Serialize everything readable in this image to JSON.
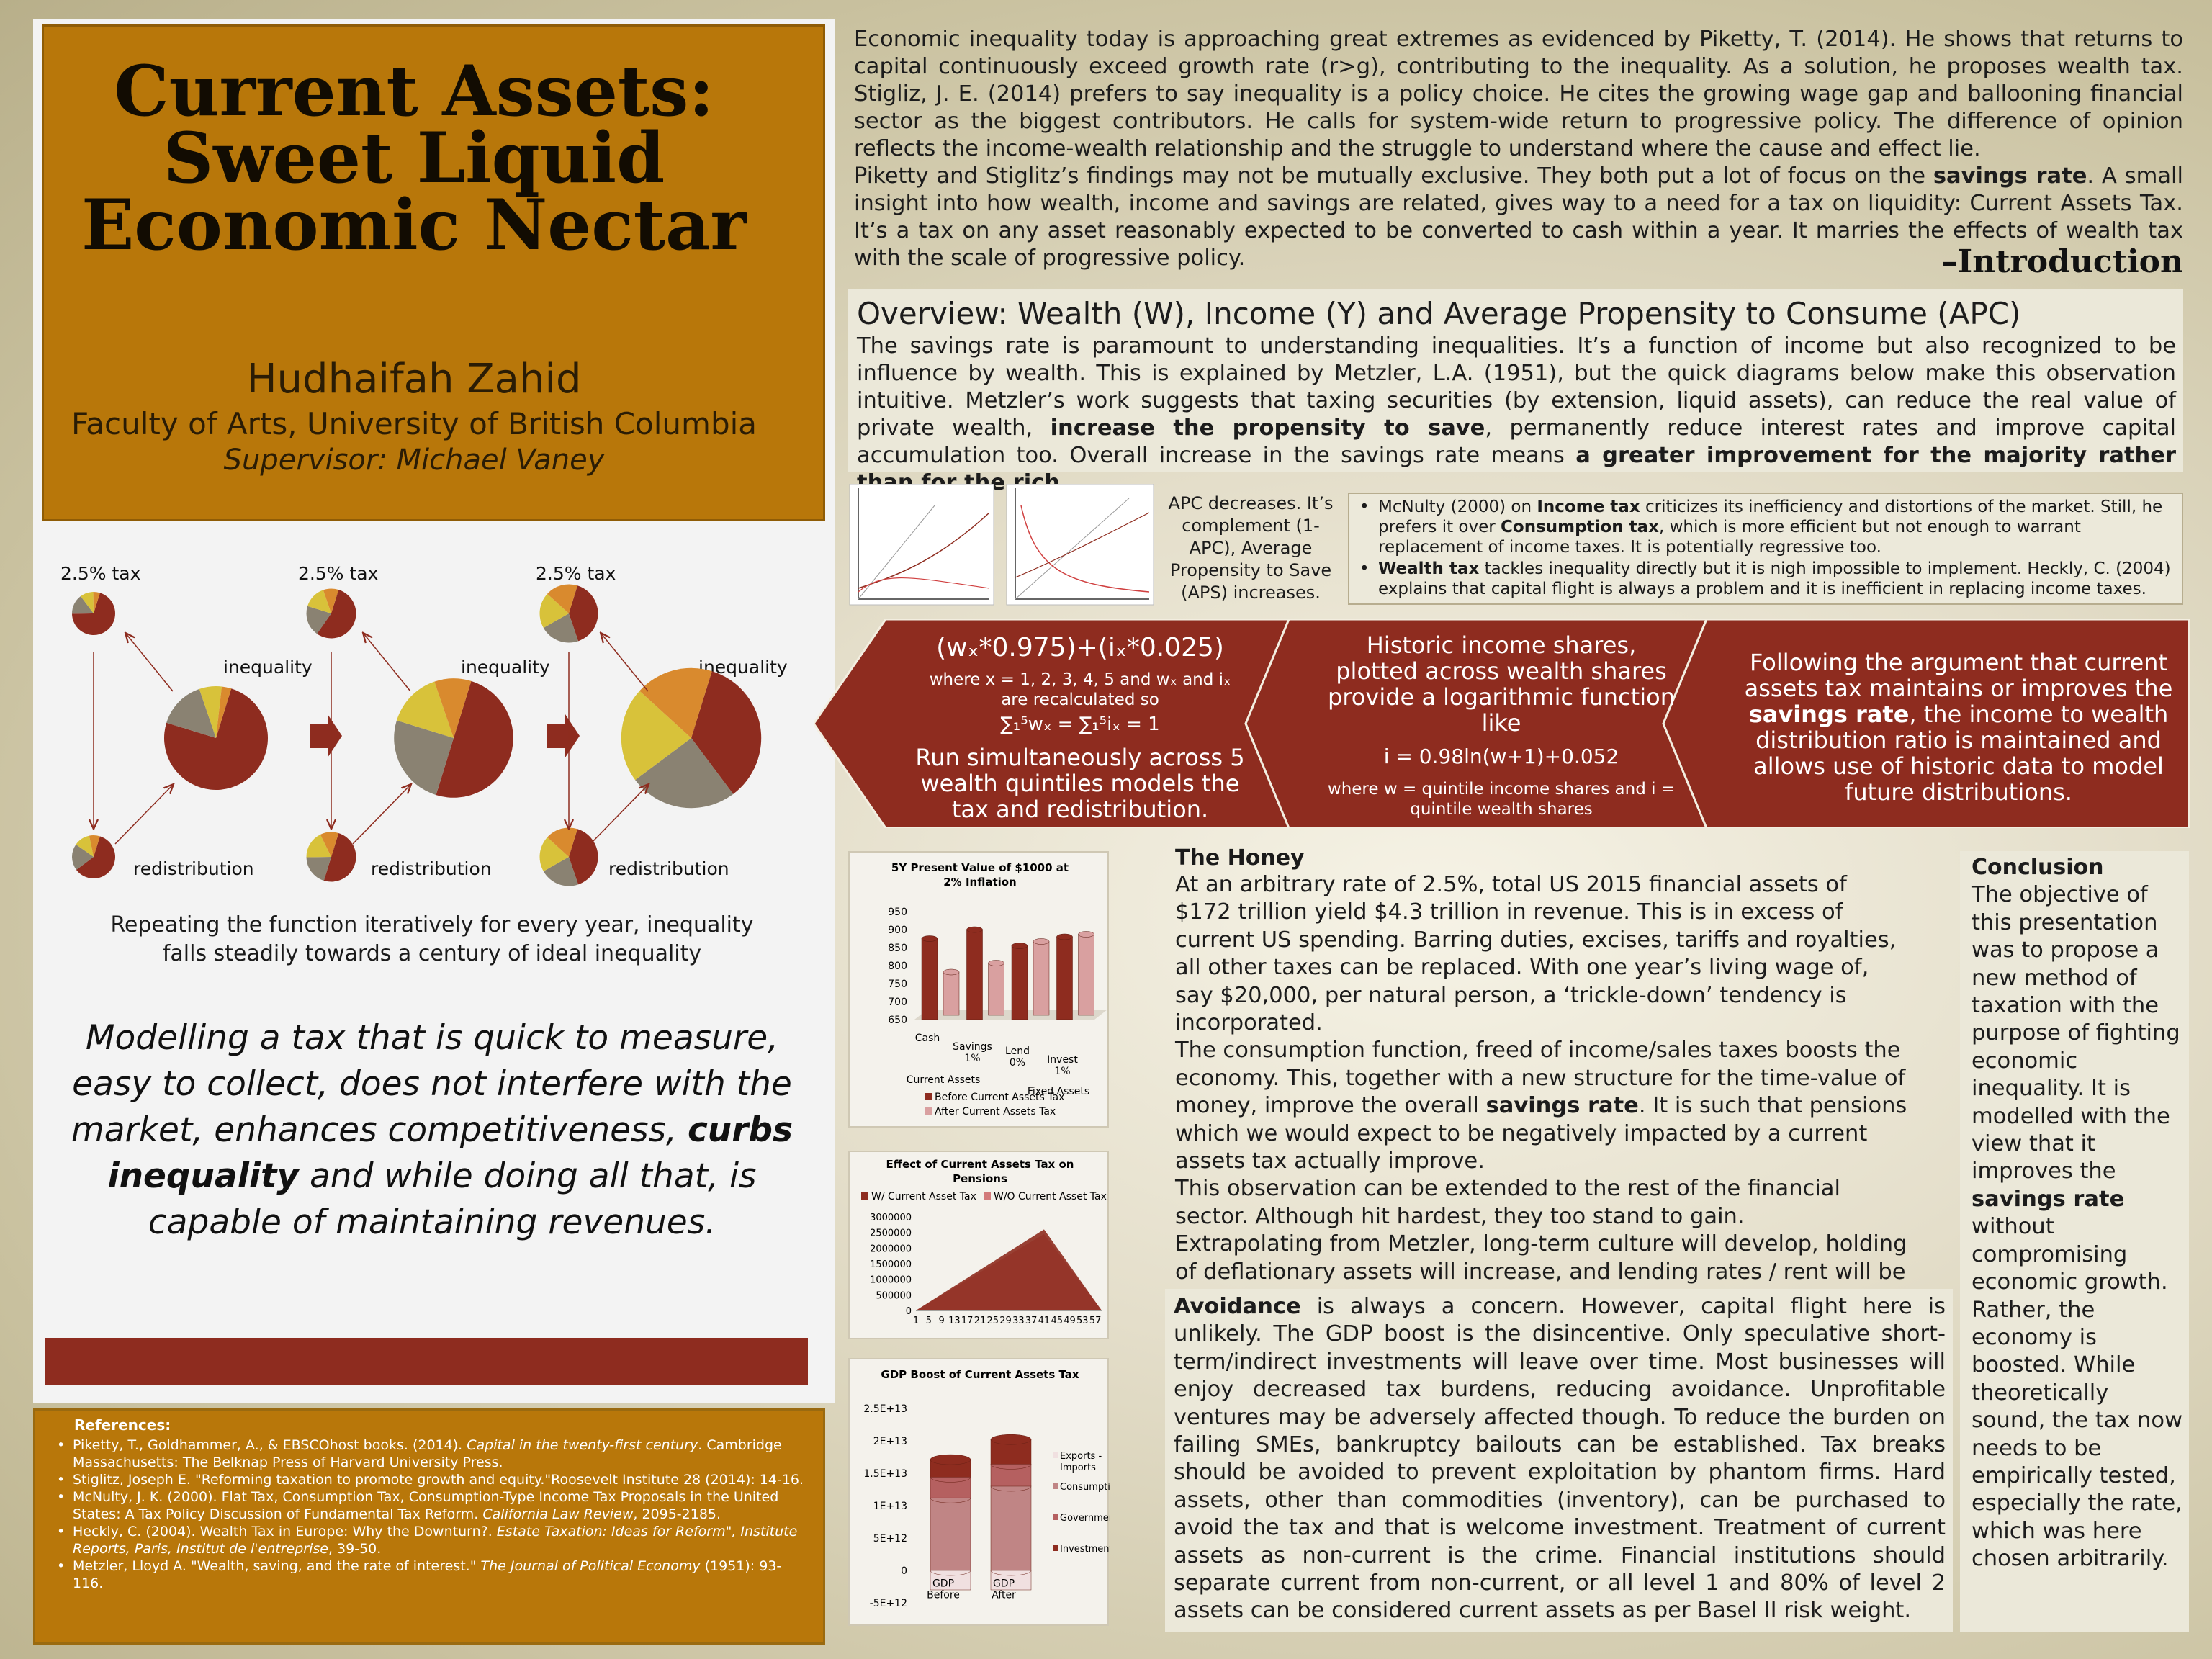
{
  "title": {
    "line1": "Current Assets:",
    "line2": "Sweet Liquid",
    "line3": "Economic Nectar",
    "author": "Hudhaifah Zahid",
    "affiliation": "Faculty of Arts, University of British Columbia",
    "supervisor": "Supervisor: Michael Vaney"
  },
  "pie_diagram": {
    "tax_label": "2.5% tax",
    "inequality_label": "inequality",
    "redistribution_label": "redistribution",
    "colors": [
      "#8e2c1f",
      "#8a8272",
      "#d8c23a",
      "#d98a2e",
      "#7a2a1c"
    ],
    "stages": [
      {
        "inequality": [
          75,
          15,
          7,
          3
        ],
        "tax": [
          70,
          15,
          10,
          5
        ],
        "redistribution": [
          60,
          20,
          12,
          8
        ]
      },
      {
        "inequality": [
          50,
          25,
          15,
          10
        ],
        "tax": [
          55,
          20,
          15,
          10
        ],
        "redistribution": [
          50,
          20,
          18,
          12
        ]
      },
      {
        "inequality": [
          35,
          25,
          22,
          18
        ],
        "tax": [
          40,
          22,
          20,
          18
        ],
        "redistribution": [
          40,
          22,
          20,
          18
        ]
      }
    ]
  },
  "iteration_caption": {
    "line1": "Repeating the function iteratively for every year, inequality",
    "line2": "falls steadily towards a century of ideal inequality"
  },
  "thesis": {
    "part1": "Modelling a tax that is quick to measure, easy to collect, does not interfere with the market, enhances competitiveness, ",
    "bold": "curbs inequality",
    "part2": " and while doing all that, is capable of maintaining revenues."
  },
  "references": {
    "heading": "References:",
    "items": [
      {
        "text": "Piketty, T., Goldhammer, A., & EBSCOhost books. (2014). ",
        "ital": "Capital in the twenty-first century",
        "rest": ". Cambridge Massachusetts: The Belknap Press of Harvard University Press."
      },
      {
        "text": "Stiglitz, Joseph E. \"Reforming taxation to promote growth and equity.\"Roosevelt Institute 28 (2014): 14-16.",
        "ital": "",
        "rest": ""
      },
      {
        "text": "McNulty, J. K. (2000). Flat Tax, Consumption Tax, Consumption-Type Income Tax Proposals in the United States: A Tax Policy Discussion of Fundamental Tax Reform. ",
        "ital": "California Law Review",
        "rest": ", 2095-2185."
      },
      {
        "text": "Heckly, C. (2004). Wealth Tax in Europe: Why the Downturn?. ",
        "ital": "Estate Taxation: Ideas for Reform\", Institute Reports, Paris, Institut de l'entreprise",
        "rest": ", 39-50."
      },
      {
        "text": "Metzler, Lloyd A. \"Wealth, saving, and the rate of interest.\" ",
        "ital": "The Journal of Political Economy",
        "rest": " (1951): 93-116."
      }
    ]
  },
  "introduction": {
    "p1": "Economic inequality today is approaching great extremes as evidenced by Piketty, T. (2014). He shows that returns to capital continuously exceed growth rate (r>g), contributing to the inequality. As a solution, he proposes wealth tax. Stigliz, J. E. (2014) prefers to say inequality is a policy choice. He cites the growing wage gap and ballooning financial sector as the biggest contributors. He calls for system-wide return to progressive policy. The difference of opinion reflects the income-wealth relationship and the struggle to understand where the cause and effect lie.",
    "p2a": "Piketty and Stiglitz’s findings may not be mutually exclusive. They both put a lot of focus on the ",
    "p2b": "savings rate",
    "p2c": ". A small insight into how wealth, income and savings are related, gives way to a need for a tax on liquidity: Current Assets Tax. It’s a tax on any asset reasonably expected to be converted to cash within a year. It marries the effects of wealth tax with the scale of progressive policy.",
    "heading": "–Introduction"
  },
  "overview": {
    "title": "Overview: Wealth (W), Income (Y) and Average Propensity to Consume (APC)",
    "t1": "The savings rate is paramount to understanding inequalities. It’s a function of income but also recognized to be influence by wealth. This is explained by Metzler, L.A. (1951), but the quick diagrams below make this observation intuitive. Metzler’s work suggests that taxing securities (by extension, liquid assets), can reduce the real value of private wealth, ",
    "b1": "increase the propensity to save",
    "t2": ", permanently reduce interest rates and improve capital accumulation too. Overall increase in the savings rate means ",
    "b2": "a greater improvement for the majority rather than for the rich."
  },
  "apc_caption": "APC decreases. It’s complement (1-APC), Average Propensity to Save (APS) increases.",
  "tax_notes": {
    "n1a": "McNulty (2000) on ",
    "n1b": "Income tax",
    "n1c": " criticizes its inefficiency and distortions of the market. Still, he prefers it over ",
    "n1d": "Consumption tax",
    "n1e": ", which is more efficient but not enough to warrant replacement of income taxes. It is potentially regressive too.",
    "n2a": "Wealth tax",
    "n2b": " tackles inequality directly but it is nigh impossible to implement. Heckly, C. (2004) explains that capital flight is always a problem and it is inefficient in replacing income taxes."
  },
  "process": {
    "formula": "(wₓ*0.975)+(iₓ*0.025)",
    "where1": "where x = 1, 2, 3, 4, 5 and wₓ and iₓ",
    "where2": "are recalculated so",
    "sum": "∑₁⁵wₓ = ∑₁⁵iₓ = 1",
    "run": "Run simultaneously across 5 wealth quintiles models the tax and redistribution.",
    "hist": "Historic income shares, plotted  across wealth shares provide a logarithmic function like",
    "hist_fn": "i = 0.98ln(w+1)+0.052",
    "hist_where": "where w = quintile income shares and i = quintile wealth shares",
    "follow_a": "Following the argument that current assets tax maintains or improves the ",
    "follow_b": "savings rate",
    "follow_c": ", the income to wealth distribution ratio is maintained and allows use of historic data to model future distributions."
  },
  "chart_data": [
    {
      "type": "bar",
      "title": "5Y Present Value of $1000 at 2% Inflation",
      "categories": [
        "Cash",
        "Savings 1%",
        "Lend 0%",
        "Invest 1%"
      ],
      "category_groups": [
        {
          "label": "Current Assets",
          "span": [
            0,
            1
          ]
        },
        {
          "label": "Fixed Assets",
          "span": [
            2,
            3
          ]
        }
      ],
      "series": [
        {
          "name": "Before Current Assets Tax",
          "values": [
            875,
            900,
            855,
            880
          ],
          "color": "#8e2c1f"
        },
        {
          "name": "After Current Assets Tax",
          "values": [
            770,
            795,
            855,
            875
          ],
          "color": "#d9a0a0"
        }
      ],
      "ylim": [
        650,
        950
      ],
      "yticks": [
        "950",
        "900",
        "850",
        "800",
        "750",
        "700",
        "650"
      ]
    },
    {
      "type": "area",
      "title": "Effect of Current Assets Tax on Pensions",
      "x_ticks": [
        "1",
        "5",
        "9",
        "13",
        "17",
        "21",
        "25",
        "29",
        "33",
        "37",
        "41",
        "45",
        "49",
        "53",
        "57"
      ],
      "x_range": [
        1,
        59
      ],
      "series": [
        {
          "name": "W/ Current Asset Tax",
          "x": [
            1,
            41,
            59
          ],
          "values": [
            0,
            2600000,
            0
          ],
          "color": "#8e2c1f"
        },
        {
          "name": "W/O Current Asset Tax",
          "x": [
            1,
            41,
            59
          ],
          "values": [
            0,
            2450000,
            0
          ],
          "color": "#d27a7a"
        }
      ],
      "ylim": [
        0,
        3000000
      ],
      "yticks": [
        "3000000",
        "2500000",
        "2000000",
        "1500000",
        "1000000",
        "500000",
        "0"
      ]
    },
    {
      "type": "bar",
      "title": "GDP Boost of Current Assets Tax",
      "categories": [
        "GDP Before",
        "GDP After"
      ],
      "series": [
        {
          "name": "Exports - Imports",
          "values": [
            -3000000000000.0,
            -3000000000000.0
          ],
          "color": "#f0e0e0"
        },
        {
          "name": "Consumption",
          "values": [
            11200000000000.0,
            13000000000000.0
          ],
          "color": "#c08585"
        },
        {
          "name": "Government",
          "values": [
            3200000000000.0,
            3400000000000.0
          ],
          "color": "#b56060"
        },
        {
          "name": "Investment",
          "values": [
            2700000000000.0,
            3800000000000.0
          ],
          "color": "#8e2c1f"
        }
      ],
      "ylim": [
        -5000000000000.0,
        25000000000000.0
      ],
      "yticks": [
        "2.5E+13",
        "2E+13",
        "1.5E+13",
        "1E+13",
        "5E+12",
        "0",
        "-5E+12"
      ]
    }
  ],
  "honey": {
    "heading": "The Honey",
    "t1": "At an arbitrary rate of 2.5%, total US 2015 financial assets of $172 trillion yield $4.3 trillion in revenue. This is in excess of current US spending. Barring duties, excises, tariffs and royalties, all other taxes can be replaced.  With one year’s living wage of, say $20,000, per natural person, a ‘trickle-down’ tendency is incorporated.",
    "t2": "The consumption function, freed of income/sales taxes  boosts the economy. This, together with a new structure for the time-value of money, improve the overall ",
    "b2": "savings rate",
    "t3": ". It is such that pensions which we would expect to be negatively impacted by a current assets tax  actually improve.",
    "t4": "This observation can be extended to the rest of the financial sector. Although hit hardest, they too stand to gain.",
    "t5": "Extrapolating from Metzler, long-term culture will develop, holding of deflationary assets will increase, and lending rates / rent will be competed away."
  },
  "avoidance": {
    "bold": "Avoidance",
    "text": " is always a concern. However, capital flight here is unlikely. The GDP boost is the disincentive. Only speculative short-term/indirect investments will leave over time. Most businesses will enjoy decreased tax burdens, reducing avoidance. Unprofitable ventures may be adversely affected though. To reduce the burden on failing SMEs, bankruptcy bailouts can be established. Tax breaks should be avoided to prevent exploitation by phantom firms. Hard assets, other than commodities (inventory), can be purchased to avoid the tax and that is welcome investment.  Treatment of current assets as non-current is the crime. Financial institutions should separate current from non-current, or all level 1 and 80% of level 2 assets can be considered current assets as per Basel II risk weight."
  },
  "conclusion": {
    "heading": "Conclusion",
    "t1": "The objective of this presentation was to propose a new method of taxation with the purpose of fighting economic inequality. It is modelled with the view that it improves the ",
    "b1": "savings rate",
    "t2": " without compromising economic growth. Rather, the economy is boosted. While theoretically sound, the tax now needs to be empirically tested, especially the rate, which was here chosen arbitrarily."
  }
}
